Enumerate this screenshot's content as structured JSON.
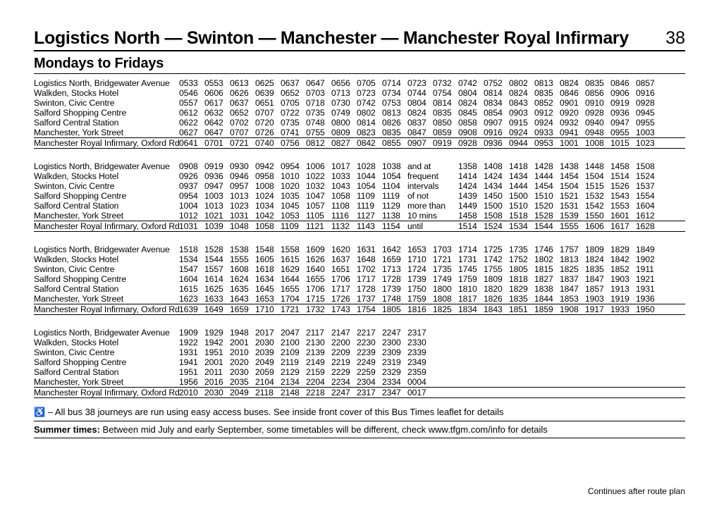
{
  "header": {
    "title": "Logistics North — Swinton — Manchester — Manchester Royal Infirmary",
    "route": "38",
    "subtitle": "Mondays to Fridays"
  },
  "stops": [
    "Logistics North, Bridgewater Avenue",
    "Walkden, Stocks Hotel",
    "Swinton, Civic Centre",
    "Salford Shopping Centre",
    "Salford Central Station",
    "Manchester, York Street",
    "Manchester Royal Infirmary, Oxford Rd"
  ],
  "blocks": [
    {
      "cols": 20,
      "rows": [
        [
          "0533",
          "0553",
          "0613",
          "0625",
          "0637",
          "0647",
          "0656",
          "0705",
          "0714",
          "0723",
          "0732",
          "0742",
          "0752",
          "0802",
          "0813",
          "0824",
          "0835",
          "0846",
          "0857"
        ],
        [
          "0546",
          "0606",
          "0626",
          "0639",
          "0652",
          "0703",
          "0713",
          "0723",
          "0734",
          "0744",
          "0754",
          "0804",
          "0814",
          "0824",
          "0835",
          "0846",
          "0856",
          "0906",
          "0916"
        ],
        [
          "0557",
          "0617",
          "0637",
          "0651",
          "0705",
          "0718",
          "0730",
          "0742",
          "0753",
          "0804",
          "0814",
          "0824",
          "0834",
          "0843",
          "0852",
          "0901",
          "0910",
          "0919",
          "0928"
        ],
        [
          "0612",
          "0632",
          "0652",
          "0707",
          "0722",
          "0735",
          "0749",
          "0802",
          "0813",
          "0824",
          "0835",
          "0845",
          "0854",
          "0903",
          "0912",
          "0920",
          "0928",
          "0936",
          "0945"
        ],
        [
          "0622",
          "0642",
          "0702",
          "0720",
          "0735",
          "0748",
          "0800",
          "0814",
          "0826",
          "0837",
          "0850",
          "0858",
          "0907",
          "0915",
          "0924",
          "0932",
          "0940",
          "0947",
          "0955"
        ],
        [
          "0627",
          "0647",
          "0707",
          "0726",
          "0741",
          "0755",
          "0809",
          "0823",
          "0835",
          "0847",
          "0859",
          "0908",
          "0916",
          "0924",
          "0933",
          "0941",
          "0948",
          "0955",
          "1003"
        ],
        [
          "0641",
          "0701",
          "0721",
          "0740",
          "0756",
          "0812",
          "0827",
          "0842",
          "0855",
          "0907",
          "0919",
          "0928",
          "0936",
          "0944",
          "0953",
          "1001",
          "1008",
          "1015",
          "1023"
        ]
      ]
    },
    {
      "cols": 20,
      "notecol": 9,
      "notes": [
        "and at",
        "frequent",
        "intervals",
        "of not",
        "more than",
        "10 mins",
        "until"
      ],
      "rows": [
        [
          "0908",
          "0919",
          "0930",
          "0942",
          "0954",
          "1006",
          "1017",
          "1028",
          "1038",
          "",
          "1358",
          "1408",
          "1418",
          "1428",
          "1438",
          "1448",
          "1458",
          "1508"
        ],
        [
          "0926",
          "0936",
          "0946",
          "0958",
          "1010",
          "1022",
          "1033",
          "1044",
          "1054",
          "",
          "1414",
          "1424",
          "1434",
          "1444",
          "1454",
          "1504",
          "1514",
          "1524"
        ],
        [
          "0937",
          "0947",
          "0957",
          "1008",
          "1020",
          "1032",
          "1043",
          "1054",
          "1104",
          "",
          "1424",
          "1434",
          "1444",
          "1454",
          "1504",
          "1515",
          "1526",
          "1537"
        ],
        [
          "0954",
          "1003",
          "1013",
          "1024",
          "1035",
          "1047",
          "1058",
          "1109",
          "1119",
          "",
          "1439",
          "1450",
          "1500",
          "1510",
          "1521",
          "1532",
          "1543",
          "1554"
        ],
        [
          "1004",
          "1013",
          "1023",
          "1034",
          "1045",
          "1057",
          "1108",
          "1119",
          "1129",
          "",
          "1449",
          "1500",
          "1510",
          "1520",
          "1531",
          "1542",
          "1553",
          "1604"
        ],
        [
          "1012",
          "1021",
          "1031",
          "1042",
          "1053",
          "1105",
          "1116",
          "1127",
          "1138",
          "",
          "1458",
          "1508",
          "1518",
          "1528",
          "1539",
          "1550",
          "1601",
          "1612"
        ],
        [
          "1031",
          "1039",
          "1048",
          "1058",
          "1109",
          "1121",
          "1132",
          "1143",
          "1154",
          "",
          "1514",
          "1524",
          "1534",
          "1544",
          "1555",
          "1606",
          "1617",
          "1628"
        ]
      ]
    },
    {
      "cols": 20,
      "rows": [
        [
          "1518",
          "1528",
          "1538",
          "1548",
          "1558",
          "1609",
          "1620",
          "1631",
          "1642",
          "1653",
          "1703",
          "1714",
          "1725",
          "1735",
          "1746",
          "1757",
          "1809",
          "1829",
          "1849"
        ],
        [
          "1534",
          "1544",
          "1555",
          "1605",
          "1615",
          "1626",
          "1637",
          "1648",
          "1659",
          "1710",
          "1721",
          "1731",
          "1742",
          "1752",
          "1802",
          "1813",
          "1824",
          "1842",
          "1902"
        ],
        [
          "1547",
          "1557",
          "1608",
          "1618",
          "1629",
          "1640",
          "1651",
          "1702",
          "1713",
          "1724",
          "1735",
          "1745",
          "1755",
          "1805",
          "1815",
          "1825",
          "1835",
          "1852",
          "1911"
        ],
        [
          "1604",
          "1614",
          "1624",
          "1634",
          "1644",
          "1655",
          "1706",
          "1717",
          "1728",
          "1739",
          "1749",
          "1759",
          "1809",
          "1818",
          "1827",
          "1837",
          "1847",
          "1903",
          "1921"
        ],
        [
          "1615",
          "1625",
          "1635",
          "1645",
          "1655",
          "1706",
          "1717",
          "1728",
          "1739",
          "1750",
          "1800",
          "1810",
          "1820",
          "1829",
          "1838",
          "1847",
          "1857",
          "1913",
          "1931"
        ],
        [
          "1623",
          "1633",
          "1643",
          "1653",
          "1704",
          "1715",
          "1726",
          "1737",
          "1748",
          "1759",
          "1808",
          "1817",
          "1826",
          "1835",
          "1844",
          "1853",
          "1903",
          "1919",
          "1936"
        ],
        [
          "1639",
          "1649",
          "1659",
          "1710",
          "1721",
          "1732",
          "1743",
          "1754",
          "1805",
          "1816",
          "1825",
          "1834",
          "1843",
          "1851",
          "1859",
          "1908",
          "1917",
          "1933",
          "1950"
        ]
      ]
    },
    {
      "cols": 20,
      "rows": [
        [
          "1909",
          "1929",
          "1948",
          "2017",
          "2047",
          "2117",
          "2147",
          "2217",
          "2247",
          "2317"
        ],
        [
          "1922",
          "1942",
          "2001",
          "2030",
          "2100",
          "2130",
          "2200",
          "2230",
          "2300",
          "2330"
        ],
        [
          "1931",
          "1951",
          "2010",
          "2039",
          "2109",
          "2139",
          "2209",
          "2239",
          "2309",
          "2339"
        ],
        [
          "1941",
          "2001",
          "2020",
          "2049",
          "2119",
          "2149",
          "2219",
          "2249",
          "2319",
          "2349"
        ],
        [
          "1951",
          "2011",
          "2030",
          "2059",
          "2129",
          "2159",
          "2229",
          "2259",
          "2329",
          "2359"
        ],
        [
          "1956",
          "2016",
          "2035",
          "2104",
          "2134",
          "2204",
          "2234",
          "2304",
          "2334",
          "0004"
        ],
        [
          "2010",
          "2030",
          "2049",
          "2118",
          "2148",
          "2218",
          "2247",
          "2317",
          "2347",
          "0017"
        ]
      ]
    }
  ],
  "footnote1_icon": "♿",
  "footnote1_text": "– All bus 38 journeys are run using easy access buses. See inside front cover of this Bus Times leaflet for details",
  "footnote2_bold": "Summer times:",
  "footnote2_text": " Between mid July and early September, some timetables will be different, check www.tfgm.com/info for details",
  "continues": "Continues after route plan"
}
